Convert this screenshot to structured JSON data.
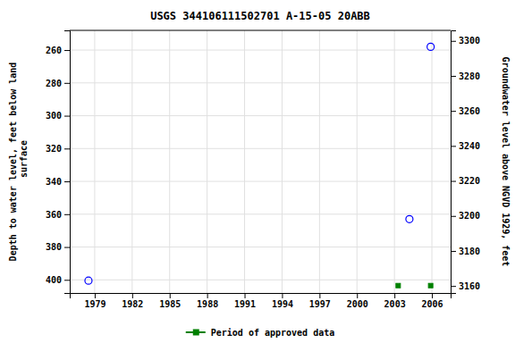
{
  "chart_data": {
    "type": "scatter",
    "title": "USGS 344106111502701 A-15-05 20ABB",
    "y_label": "Depth to water level, feet below land\n surface",
    "y2_label": "Groundwater level above NGVD 1929, feet",
    "xlim": [
      1977.0,
      2007.5
    ],
    "xticks": [
      1979,
      1982,
      1985,
      1988,
      1991,
      1994,
      1997,
      2000,
      2003,
      2006
    ],
    "ylim": [
      408,
      248
    ],
    "yticks": [
      260,
      280,
      300,
      320,
      340,
      360,
      380,
      400
    ],
    "y2lim": [
      3156,
      3306
    ],
    "y2ticks": [
      3160,
      3180,
      3200,
      3220,
      3240,
      3260,
      3280,
      3300
    ],
    "grid": true,
    "legend": "bottom",
    "series": [
      {
        "color": "#0000ff",
        "marker": "circle-open",
        "x": [
          1978.5,
          2004.2,
          2005.9
        ],
        "values": [
          400.5,
          363.0,
          258.0
        ]
      },
      {
        "name": "Period of approved data",
        "color": "#008000",
        "marker": "square",
        "x": [
          2003.3,
          2005.9
        ],
        "values": [
          403.5,
          403.5
        ]
      }
    ]
  }
}
